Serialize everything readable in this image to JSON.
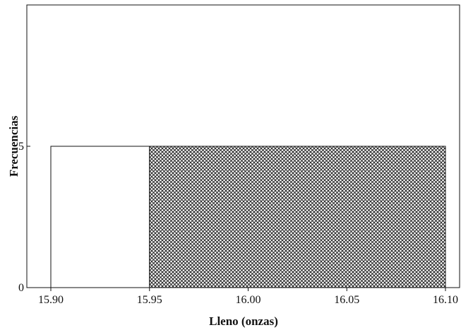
{
  "chart_data": {
    "type": "bar",
    "title": "",
    "xlabel": "Lleno (onzas)",
    "ylabel": "Frecuencias",
    "xlim": [
      15.9,
      16.1
    ],
    "ylim": [
      0,
      10
    ],
    "x_ticks": [
      "15.90",
      "15.95",
      "16.00",
      "16.05",
      "16.10"
    ],
    "y_ticks": [
      "0",
      "5"
    ],
    "y_tick_values": [
      0,
      5
    ],
    "grid": false,
    "bins": [
      {
        "start": 15.9,
        "end": 15.95,
        "value": 5,
        "fill": "none"
      },
      {
        "start": 15.95,
        "end": 16.1,
        "value": 5,
        "fill": "crosshatch"
      }
    ]
  },
  "colors": {
    "axis": "#111111",
    "hatch": "#222222",
    "background": "#ffffff"
  }
}
